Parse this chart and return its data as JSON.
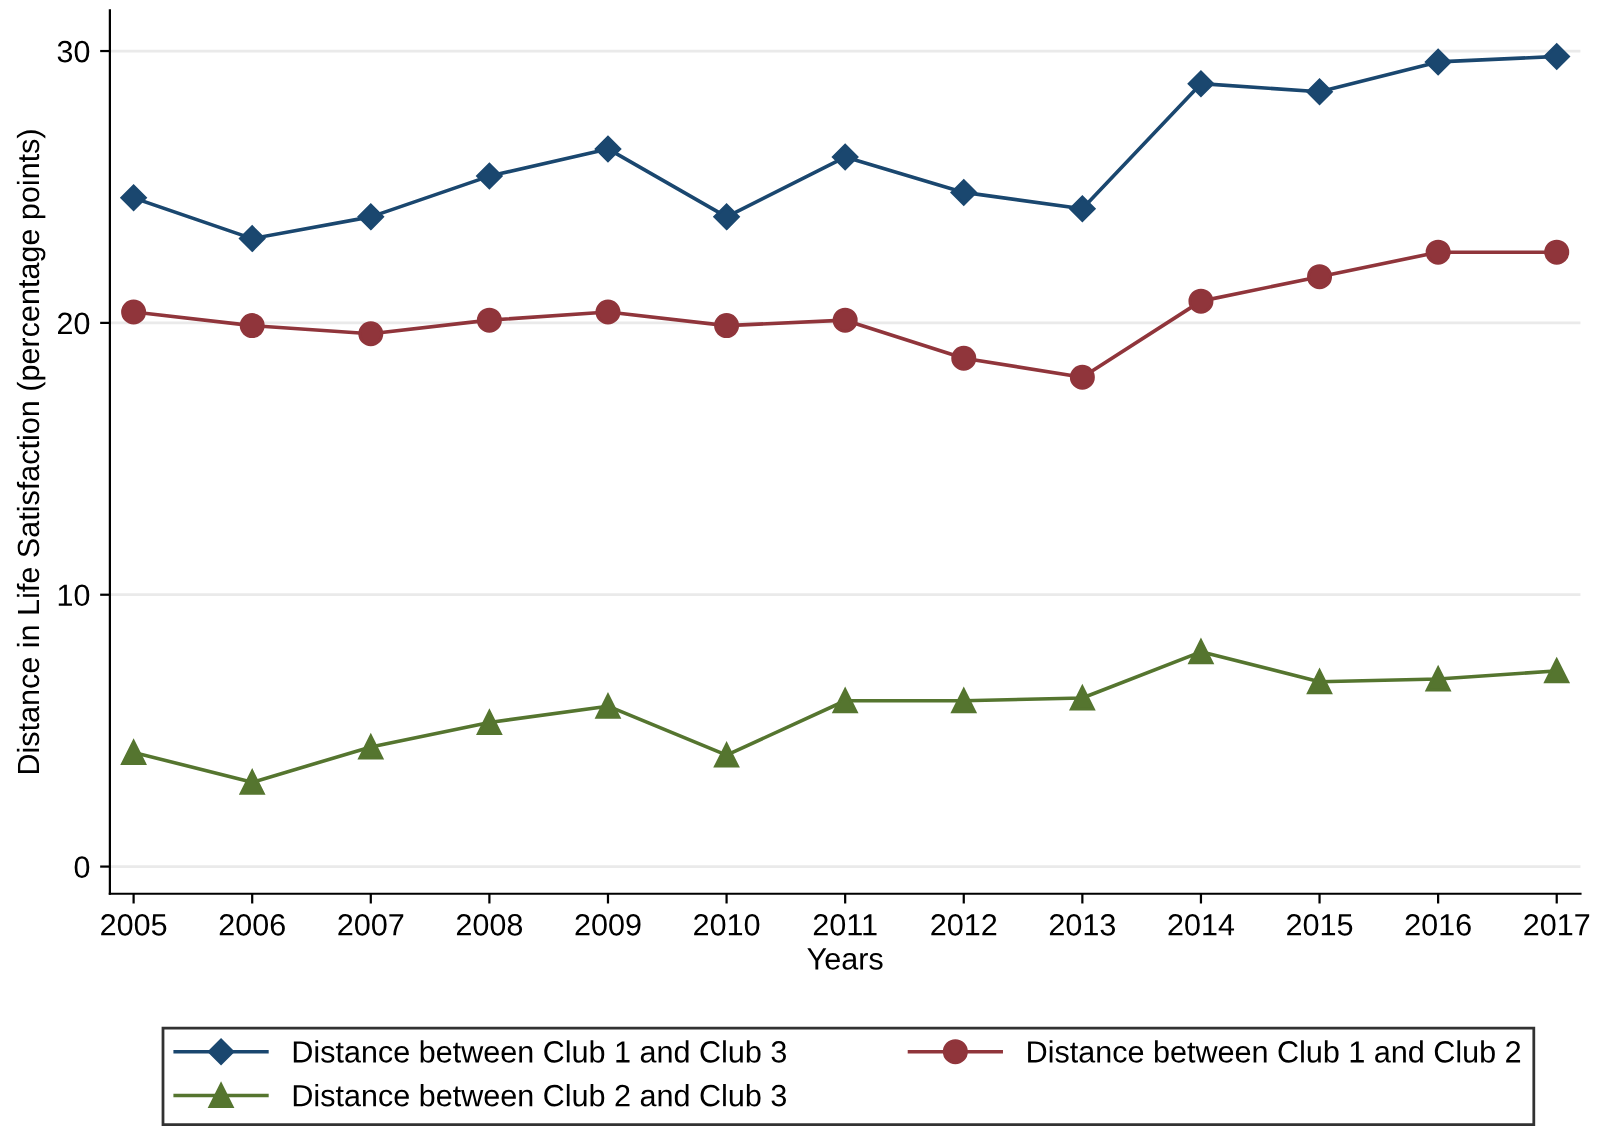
{
  "chart_data": {
    "type": "line",
    "xlabel": "Years",
    "ylabel": "Distance in Life Satisfaction (percentage points)",
    "x": [
      2005,
      2006,
      2007,
      2008,
      2009,
      2010,
      2011,
      2012,
      2013,
      2014,
      2015,
      2016,
      2017
    ],
    "xlim": [
      2004.8,
      2017.2
    ],
    "xticks": [
      2005,
      2006,
      2007,
      2008,
      2009,
      2010,
      2011,
      2012,
      2013,
      2014,
      2015,
      2016,
      2017
    ],
    "ylim": [
      -1,
      31.5
    ],
    "yticks": [
      0,
      10,
      20,
      30
    ],
    "grid": "y",
    "legend": "bottom",
    "line_style": "solid",
    "series": [
      {
        "name": "Distance between Club 1 and Club 3",
        "color": "#1a476f",
        "marker": "diamond",
        "values": [
          24.6,
          23.1,
          23.9,
          25.4,
          26.4,
          23.9,
          26.1,
          24.8,
          24.2,
          28.8,
          28.5,
          29.6,
          29.8
        ]
      },
      {
        "name": "Distance between Club 1 and Club 2",
        "color": "#90353b",
        "marker": "circle",
        "values": [
          20.4,
          19.9,
          19.6,
          20.1,
          20.4,
          19.9,
          20.1,
          18.7,
          18.0,
          20.8,
          21.7,
          22.6,
          22.6
        ]
      },
      {
        "name": "Distance between Club 2 and Club 3",
        "color": "#55752f",
        "marker": "triangle",
        "values": [
          4.2,
          3.1,
          4.4,
          5.3,
          5.9,
          4.1,
          6.1,
          6.1,
          6.2,
          7.9,
          6.8,
          6.9,
          7.2
        ]
      }
    ]
  }
}
